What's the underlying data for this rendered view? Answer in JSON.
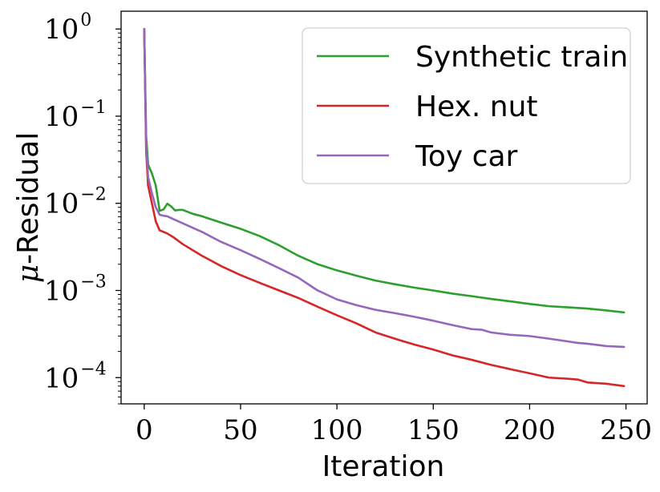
{
  "chart_data": {
    "type": "line",
    "xlabel": "Iteration",
    "ylabel_symbol": "μ",
    "ylabel_rest": "-Residual",
    "yscale": "log",
    "xlim": [
      -12,
      261
    ],
    "ylim": [
      5e-05,
      1.6
    ],
    "grid": false,
    "legend_position": "top-right",
    "x_ticks": [
      0,
      50,
      100,
      150,
      200,
      250
    ],
    "x_tick_labels": [
      "0",
      "50",
      "100",
      "150",
      "200",
      "250"
    ],
    "y_ticks": [
      {
        "value": 1,
        "base": "10",
        "exp": "0"
      },
      {
        "value": 0.1,
        "base": "10",
        "exp": "−1"
      },
      {
        "value": 0.01,
        "base": "10",
        "exp": "−2"
      },
      {
        "value": 0.001,
        "base": "10",
        "exp": "−3"
      },
      {
        "value": 0.0001,
        "base": "10",
        "exp": "−4"
      }
    ],
    "series": [
      {
        "name": "Synthetic train",
        "color": "#2ca02c",
        "points": [
          [
            0,
            1.0
          ],
          [
            1,
            0.06
          ],
          [
            2,
            0.028
          ],
          [
            4,
            0.022
          ],
          [
            6,
            0.016
          ],
          [
            8,
            0.0082
          ],
          [
            10,
            0.0085
          ],
          [
            12,
            0.0099
          ],
          [
            14,
            0.0092
          ],
          [
            16,
            0.0083
          ],
          [
            18,
            0.0084
          ],
          [
            20,
            0.0084
          ],
          [
            25,
            0.0076
          ],
          [
            30,
            0.0071
          ],
          [
            40,
            0.006
          ],
          [
            50,
            0.0051
          ],
          [
            60,
            0.0042
          ],
          [
            70,
            0.0033
          ],
          [
            80,
            0.0025
          ],
          [
            90,
            0.002
          ],
          [
            100,
            0.0017
          ],
          [
            110,
            0.00148
          ],
          [
            120,
            0.0013
          ],
          [
            130,
            0.00118
          ],
          [
            140,
            0.00108
          ],
          [
            150,
            0.001
          ],
          [
            160,
            0.00092
          ],
          [
            170,
            0.00086
          ],
          [
            180,
            0.0008
          ],
          [
            190,
            0.00075
          ],
          [
            200,
            0.0007
          ],
          [
            210,
            0.00066
          ],
          [
            220,
            0.00064
          ],
          [
            230,
            0.00062
          ],
          [
            240,
            0.00059
          ],
          [
            249,
            0.00056
          ]
        ]
      },
      {
        "name": "Hex. nut",
        "color": "#d62728",
        "points": [
          [
            0,
            1.0
          ],
          [
            1,
            0.04
          ],
          [
            2,
            0.016
          ],
          [
            4,
            0.01
          ],
          [
            6,
            0.0062
          ],
          [
            8,
            0.0049
          ],
          [
            10,
            0.0047
          ],
          [
            12,
            0.0045
          ],
          [
            15,
            0.0041
          ],
          [
            20,
            0.0034
          ],
          [
            30,
            0.0025
          ],
          [
            40,
            0.0019
          ],
          [
            50,
            0.0015
          ],
          [
            60,
            0.00122
          ],
          [
            70,
            0.001
          ],
          [
            80,
            0.00082
          ],
          [
            90,
            0.00065
          ],
          [
            100,
            0.00052
          ],
          [
            110,
            0.00042
          ],
          [
            120,
            0.00033
          ],
          [
            130,
            0.00028
          ],
          [
            140,
            0.00024
          ],
          [
            150,
            0.00021
          ],
          [
            160,
            0.00018
          ],
          [
            170,
            0.00016
          ],
          [
            180,
            0.00014
          ],
          [
            190,
            0.000125
          ],
          [
            200,
            0.000112
          ],
          [
            210,
            0.0001
          ],
          [
            220,
            9.7e-05
          ],
          [
            225,
            9.5e-05
          ],
          [
            230,
            8.8e-05
          ],
          [
            240,
            8.5e-05
          ],
          [
            249,
            8e-05
          ]
        ]
      },
      {
        "name": "Toy car",
        "color": "#9467bd",
        "points": [
          [
            0,
            1.0
          ],
          [
            1,
            0.05
          ],
          [
            2,
            0.02
          ],
          [
            4,
            0.013
          ],
          [
            6,
            0.009
          ],
          [
            8,
            0.0074
          ],
          [
            10,
            0.0072
          ],
          [
            12,
            0.0071
          ],
          [
            15,
            0.0066
          ],
          [
            20,
            0.0059
          ],
          [
            30,
            0.0047
          ],
          [
            40,
            0.0036
          ],
          [
            50,
            0.0029
          ],
          [
            60,
            0.0023
          ],
          [
            70,
            0.0018
          ],
          [
            80,
            0.0014
          ],
          [
            90,
            0.001
          ],
          [
            100,
            0.00079
          ],
          [
            110,
            0.00068
          ],
          [
            120,
            0.0006
          ],
          [
            130,
            0.00055
          ],
          [
            140,
            0.0005
          ],
          [
            150,
            0.00045
          ],
          [
            160,
            0.0004
          ],
          [
            170,
            0.00036
          ],
          [
            175,
            0.000355
          ],
          [
            180,
            0.00033
          ],
          [
            190,
            0.00031
          ],
          [
            200,
            0.0003
          ],
          [
            210,
            0.00028
          ],
          [
            220,
            0.00026
          ],
          [
            225,
            0.00025
          ],
          [
            230,
            0.000245
          ],
          [
            240,
            0.00023
          ],
          [
            249,
            0.000225
          ]
        ]
      }
    ]
  }
}
